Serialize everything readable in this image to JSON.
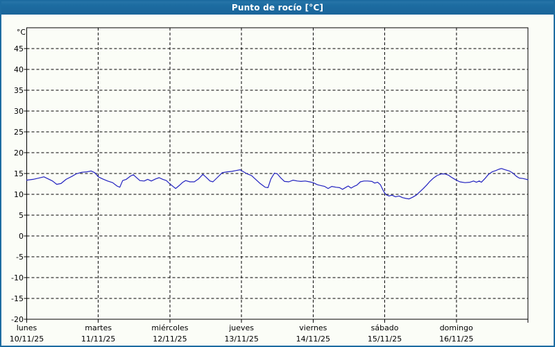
{
  "window": {
    "title": "Punto de rocío [°C]",
    "titlebar_color": "#1d6ca1",
    "border_color": "#1d6ca1",
    "background_color": "#fbfdf7"
  },
  "chart_data": {
    "type": "line",
    "title": "Punto de rocío [°C]",
    "unit_label": "°C",
    "line_color": "#2222c0",
    "grid": "dashed-black",
    "legend_position": "none",
    "y_axis": {
      "min": -20,
      "max": 50,
      "tick_step": 5,
      "tick_labels": [
        45,
        40,
        35,
        30,
        25,
        20,
        15,
        10,
        5,
        0,
        -5,
        -10,
        -15,
        -20
      ]
    },
    "x_axis": {
      "unit": "days",
      "range_days": 7,
      "days": [
        {
          "name": "lunes",
          "date": "10/11/25"
        },
        {
          "name": "martes",
          "date": "11/11/25"
        },
        {
          "name": "miércoles",
          "date": "12/11/25"
        },
        {
          "name": "jueves",
          "date": "13/11/25"
        },
        {
          "name": "viernes",
          "date": "14/11/25"
        },
        {
          "name": "sábado",
          "date": "15/11/25"
        },
        {
          "name": "domingo",
          "date": "16/11/25"
        }
      ]
    },
    "series": [
      {
        "name": "Punto de rocío",
        "points": [
          [
            0,
            13.4
          ],
          [
            0.09,
            13.6
          ],
          [
            0.17,
            13.9
          ],
          [
            0.24,
            14.2
          ],
          [
            0.3,
            13.7
          ],
          [
            0.36,
            13.2
          ],
          [
            0.42,
            12.4
          ],
          [
            0.48,
            12.6
          ],
          [
            0.55,
            13.6
          ],
          [
            0.63,
            14.3
          ],
          [
            0.69,
            14.9
          ],
          [
            0.77,
            15.3
          ],
          [
            0.84,
            15.4
          ],
          [
            0.9,
            15.6
          ],
          [
            0.95,
            15.2
          ],
          [
            1.0,
            14.2
          ],
          [
            1.06,
            13.7
          ],
          [
            1.13,
            13.2
          ],
          [
            1.2,
            12.8
          ],
          [
            1.26,
            12.0
          ],
          [
            1.3,
            11.7
          ],
          [
            1.34,
            13.3
          ],
          [
            1.39,
            13.6
          ],
          [
            1.45,
            14.4
          ],
          [
            1.49,
            14.7
          ],
          [
            1.54,
            13.9
          ],
          [
            1.58,
            13.3
          ],
          [
            1.64,
            13.2
          ],
          [
            1.69,
            13.6
          ],
          [
            1.74,
            13.2
          ],
          [
            1.8,
            13.7
          ],
          [
            1.85,
            14.0
          ],
          [
            1.9,
            13.6
          ],
          [
            1.95,
            13.3
          ],
          [
            2.0,
            12.5
          ],
          [
            2.05,
            11.8
          ],
          [
            2.08,
            11.4
          ],
          [
            2.13,
            12.1
          ],
          [
            2.18,
            12.9
          ],
          [
            2.22,
            13.3
          ],
          [
            2.28,
            13.0
          ],
          [
            2.34,
            13.0
          ],
          [
            2.4,
            13.7
          ],
          [
            2.46,
            14.8
          ],
          [
            2.5,
            14.2
          ],
          [
            2.56,
            13.2
          ],
          [
            2.6,
            13.0
          ],
          [
            2.66,
            14.0
          ],
          [
            2.73,
            15.2
          ],
          [
            2.8,
            15.4
          ],
          [
            2.86,
            15.5
          ],
          [
            2.92,
            15.7
          ],
          [
            2.98,
            15.9
          ],
          [
            3.03,
            15.4
          ],
          [
            3.08,
            14.9
          ],
          [
            3.14,
            14.5
          ],
          [
            3.19,
            13.7
          ],
          [
            3.26,
            12.6
          ],
          [
            3.33,
            11.7
          ],
          [
            3.37,
            11.6
          ],
          [
            3.41,
            13.7
          ],
          [
            3.46,
            15.1
          ],
          [
            3.5,
            14.9
          ],
          [
            3.55,
            13.9
          ],
          [
            3.6,
            13.1
          ],
          [
            3.66,
            13.0
          ],
          [
            3.72,
            13.4
          ],
          [
            3.78,
            13.2
          ],
          [
            3.83,
            13.1
          ],
          [
            3.89,
            13.2
          ],
          [
            3.95,
            13.0
          ],
          [
            4.0,
            12.8
          ],
          [
            4.06,
            12.3
          ],
          [
            4.11,
            12.1
          ],
          [
            4.16,
            11.9
          ],
          [
            4.21,
            11.4
          ],
          [
            4.26,
            11.9
          ],
          [
            4.32,
            11.7
          ],
          [
            4.37,
            11.6
          ],
          [
            4.41,
            11.2
          ],
          [
            4.46,
            11.7
          ],
          [
            4.49,
            12.0
          ],
          [
            4.53,
            11.5
          ],
          [
            4.57,
            11.9
          ],
          [
            4.61,
            12.2
          ],
          [
            4.66,
            13.0
          ],
          [
            4.71,
            13.2
          ],
          [
            4.76,
            13.2
          ],
          [
            4.82,
            13.1
          ],
          [
            4.86,
            12.7
          ],
          [
            4.9,
            12.9
          ],
          [
            4.94,
            12.3
          ],
          [
            4.97,
            11.2
          ],
          [
            5.0,
            10.3
          ],
          [
            5.02,
            9.9
          ],
          [
            5.06,
            9.6
          ],
          [
            5.1,
            9.8
          ],
          [
            5.15,
            9.4
          ],
          [
            5.2,
            9.6
          ],
          [
            5.25,
            9.2
          ],
          [
            5.3,
            9.0
          ],
          [
            5.34,
            8.9
          ],
          [
            5.39,
            9.3
          ],
          [
            5.44,
            9.8
          ],
          [
            5.49,
            10.6
          ],
          [
            5.54,
            11.4
          ],
          [
            5.59,
            12.3
          ],
          [
            5.63,
            13.1
          ],
          [
            5.68,
            13.9
          ],
          [
            5.73,
            14.5
          ],
          [
            5.79,
            14.9
          ],
          [
            5.84,
            14.9
          ],
          [
            5.89,
            14.6
          ],
          [
            5.93,
            14.1
          ],
          [
            5.97,
            13.7
          ],
          [
            6.0,
            13.4
          ],
          [
            6.05,
            13.0
          ],
          [
            6.12,
            12.8
          ],
          [
            6.19,
            12.9
          ],
          [
            6.24,
            13.2
          ],
          [
            6.28,
            12.9
          ],
          [
            6.32,
            13.2
          ],
          [
            6.35,
            12.9
          ],
          [
            6.4,
            13.8
          ],
          [
            6.45,
            14.8
          ],
          [
            6.5,
            15.4
          ],
          [
            6.55,
            15.7
          ],
          [
            6.59,
            16.0
          ],
          [
            6.63,
            16.2
          ],
          [
            6.68,
            15.9
          ],
          [
            6.74,
            15.6
          ],
          [
            6.79,
            15.1
          ],
          [
            6.84,
            14.3
          ],
          [
            6.88,
            13.9
          ],
          [
            6.93,
            13.8
          ],
          [
            6.98,
            13.6
          ],
          [
            7.0,
            13.5
          ]
        ]
      }
    ]
  }
}
